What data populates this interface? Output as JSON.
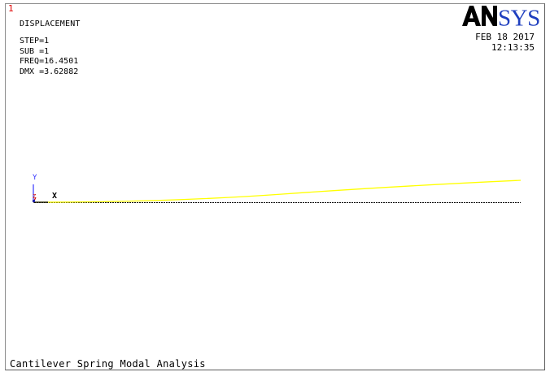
{
  "window": {
    "number": "1"
  },
  "plot": {
    "title": "DISPLACEMENT",
    "info": {
      "step": "STEP=1",
      "sub": "SUB =1",
      "freq": "FREQ=16.4501",
      "dmx": "DMX =3.62882"
    },
    "caption": "Cantilever Spring Modal Analysis"
  },
  "branding": {
    "logo_text": "ANSYS",
    "date": "FEB 18 2017",
    "time": "12:13:35"
  },
  "triad": {
    "x_label": "X",
    "y_label": "Y",
    "z_label": "Z"
  },
  "colors": {
    "deformed_shape": "#ffff00",
    "undeformed_edge": "#000000",
    "window_number": "#e00000",
    "y_axis": "#3333ff",
    "z_axis": "#cc0000",
    "background": "#ffffff"
  }
}
